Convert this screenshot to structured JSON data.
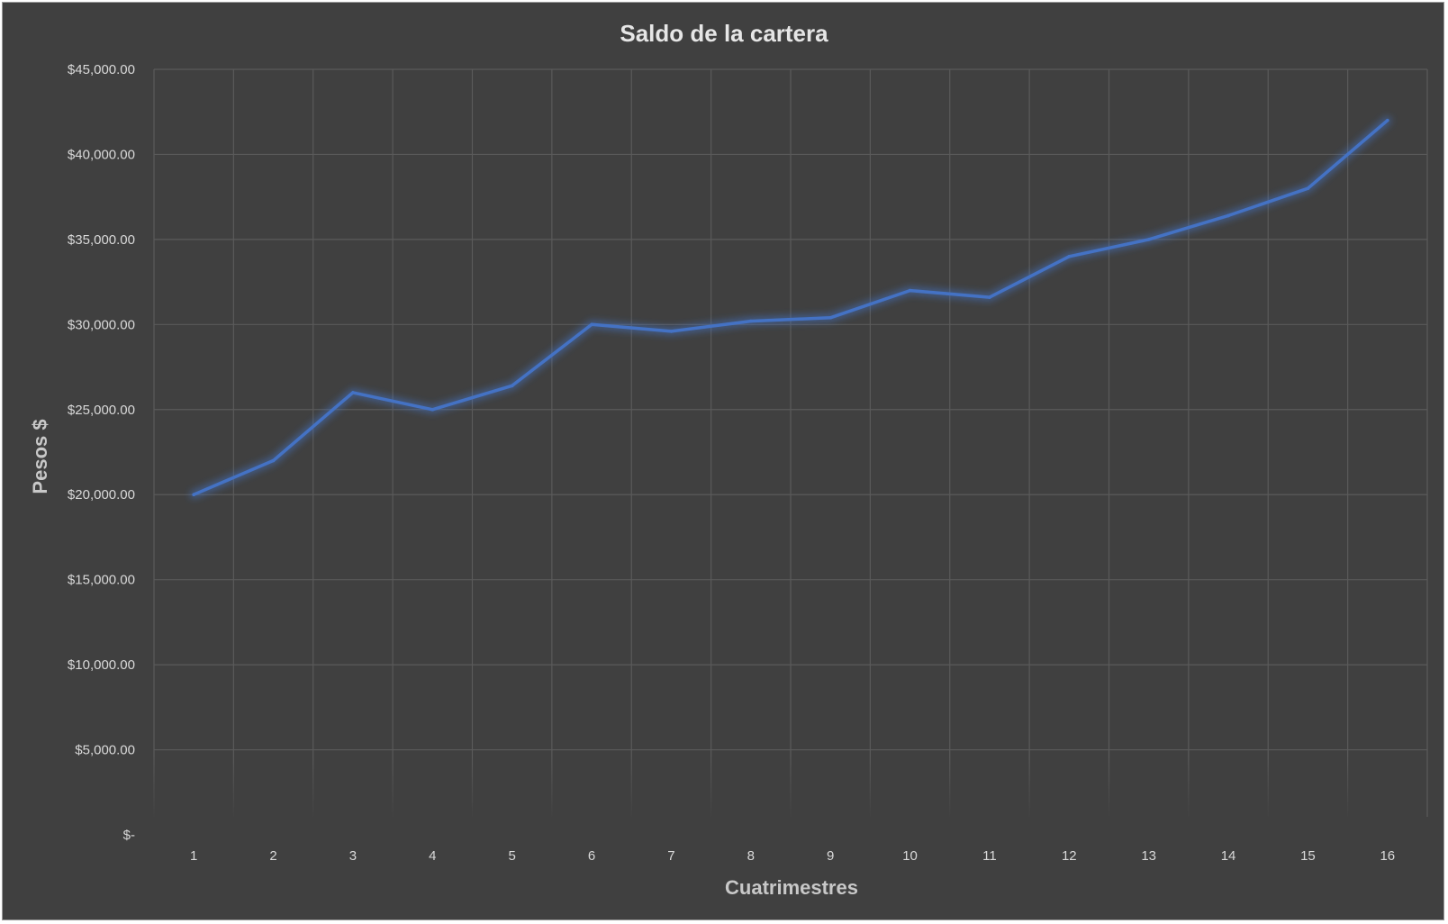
{
  "chart_data": {
    "type": "line",
    "title": "Saldo de la cartera",
    "xlabel": "Cuatrimestres",
    "ylabel": "Pesos $",
    "categories": [
      "1",
      "2",
      "3",
      "4",
      "5",
      "6",
      "7",
      "8",
      "9",
      "10",
      "11",
      "12",
      "13",
      "14",
      "15",
      "16"
    ],
    "series": [
      {
        "values": [
          20000,
          22000,
          26000,
          25000,
          26400,
          30000,
          29600,
          30200,
          30400,
          32000,
          31600,
          34000,
          35000,
          36400,
          38000,
          42000
        ],
        "color": "#4472c4"
      }
    ],
    "ylim": [
      0,
      45000
    ],
    "y_ticks": [
      0,
      5000,
      10000,
      15000,
      20000,
      25000,
      30000,
      35000,
      40000,
      45000
    ],
    "y_tick_labels": [
      "$-",
      "$5,000.00",
      "$10,000.00",
      "$15,000.00",
      "$20,000.00",
      "$25,000.00",
      "$30,000.00",
      "$35,000.00",
      "$40,000.00",
      "$45,000.00"
    ],
    "grid": true,
    "legend": "none",
    "background_color": "#404040",
    "gridline_color": "#5a5a5a",
    "text_color": "#d9d9d9"
  }
}
